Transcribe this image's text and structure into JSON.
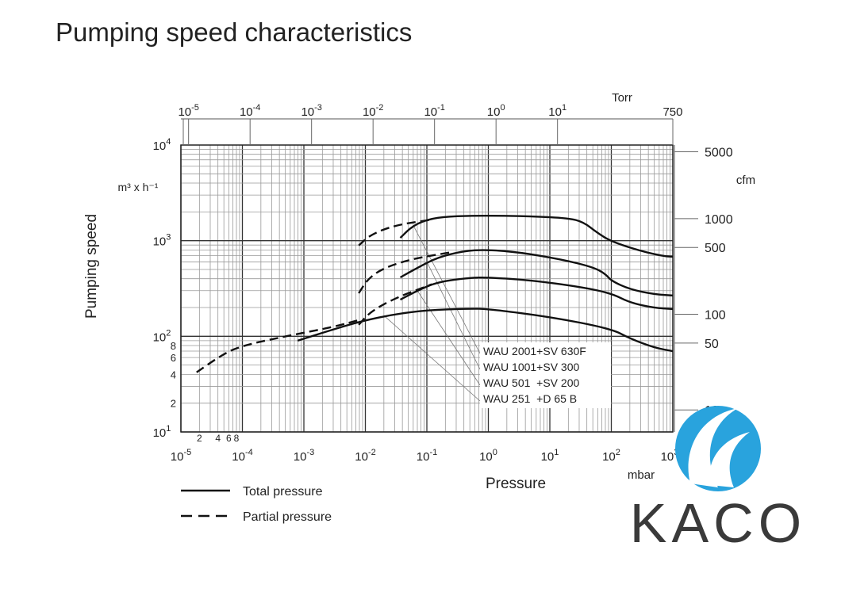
{
  "chart_data": {
    "type": "line",
    "title": "Pumping speed characteristics",
    "xlabel": "Pressure",
    "xunit": "mbar",
    "ylabel": "Pumping speed",
    "yunit": "m³ x h⁻¹",
    "xscale": "log",
    "yscale": "log",
    "xlim": [
      1e-05,
      1000
    ],
    "ylim": [
      10,
      10000
    ],
    "grid": true,
    "x_ticks": [
      {
        "exp": "-5",
        "value": 1e-05
      },
      {
        "exp": "-4",
        "value": 0.0001
      },
      {
        "exp": "-3",
        "value": 0.001
      },
      {
        "exp": "-2",
        "value": 0.01
      },
      {
        "exp": "-1",
        "value": 0.1
      },
      {
        "exp": "0",
        "value": 1
      },
      {
        "exp": "1",
        "value": 10
      },
      {
        "exp": "2",
        "value": 100
      },
      {
        "exp": "3",
        "value": 1000
      }
    ],
    "x_minor_labels": [
      {
        "label": "2",
        "value": 2e-05
      },
      {
        "label": "4",
        "value": 4e-05
      },
      {
        "label": "6",
        "value": 6e-05
      },
      {
        "label": "8",
        "value": 8e-05
      }
    ],
    "y_ticks": [
      {
        "exp": "1",
        "value": 10
      },
      {
        "exp": "2",
        "value": 100
      },
      {
        "exp": "3",
        "value": 1000
      },
      {
        "exp": "4",
        "value": 10000
      }
    ],
    "y_minor_labels": [
      {
        "label": "2",
        "value": 20
      },
      {
        "label": "4",
        "value": 40
      },
      {
        "label": "6",
        "value": 60
      },
      {
        "label": "8",
        "value": 80
      }
    ],
    "top_axis": {
      "unit": "Torr",
      "ticks": [
        {
          "base": "10",
          "exp": "-5",
          "value": 1e-05
        },
        {
          "base": "10",
          "exp": "-4",
          "value": 0.0001
        },
        {
          "base": "10",
          "exp": "-3",
          "value": 0.001
        },
        {
          "base": "10",
          "exp": "-2",
          "value": 0.01
        },
        {
          "base": "10",
          "exp": "-1",
          "value": 0.1
        },
        {
          "base": "10",
          "exp": "0",
          "value": 1
        },
        {
          "base": "10",
          "exp": "1",
          "value": 10
        },
        {
          "base": "750",
          "exp": "",
          "value": 750
        }
      ]
    },
    "right_axis": {
      "unit": "cfm",
      "ticks": [
        {
          "label": "5000",
          "value": 5000
        },
        {
          "label": "1000",
          "value": 1000
        },
        {
          "label": "500",
          "value": 500
        },
        {
          "label": "100",
          "value": 100
        },
        {
          "label": "50",
          "value": 50
        },
        {
          "label": "10",
          "value": 10
        }
      ]
    },
    "series": [
      {
        "name": "WAU 2001+SV 630F",
        "style": "solid",
        "points": [
          [
            0.037,
            1070
          ],
          [
            0.06,
            1450
          ],
          [
            0.12,
            1720
          ],
          [
            0.3,
            1810
          ],
          [
            1,
            1830
          ],
          [
            5,
            1800
          ],
          [
            20,
            1720
          ],
          [
            35,
            1570
          ],
          [
            60,
            1200
          ],
          [
            100,
            980
          ],
          [
            300,
            780
          ],
          [
            700,
            690
          ],
          [
            1000,
            680
          ]
        ],
        "label_anchor": [
          0.06,
          1450
        ]
      },
      {
        "name": "WAU 2001+SV 630F",
        "style": "dashed",
        "points": [
          [
            0.0078,
            890
          ],
          [
            0.012,
            1150
          ],
          [
            0.03,
            1450
          ],
          [
            0.12,
            1660
          ]
        ]
      },
      {
        "name": "WAU 1001+SV 300",
        "style": "solid",
        "points": [
          [
            0.037,
            413
          ],
          [
            0.07,
            520
          ],
          [
            0.15,
            670
          ],
          [
            0.4,
            780
          ],
          [
            0.9,
            805
          ],
          [
            3,
            760
          ],
          [
            15,
            640
          ],
          [
            50,
            530
          ],
          [
            80,
            450
          ],
          [
            100,
            380
          ],
          [
            200,
            310
          ],
          [
            500,
            275
          ],
          [
            1000,
            267
          ]
        ],
        "label_anchor": [
          0.1,
          600
        ]
      },
      {
        "name": "WAU 1001+SV 300",
        "style": "dashed",
        "points": [
          [
            0.0078,
            282
          ],
          [
            0.011,
            400
          ],
          [
            0.02,
            520
          ],
          [
            0.06,
            650
          ],
          [
            0.26,
            760
          ]
        ]
      },
      {
        "name": "WAU 501 +SV 200",
        "style": "solid",
        "points": [
          [
            0.037,
            242
          ],
          [
            0.07,
            300
          ],
          [
            0.15,
            370
          ],
          [
            0.5,
            410
          ],
          [
            1,
            413
          ],
          [
            5,
            385
          ],
          [
            30,
            330
          ],
          [
            100,
            282
          ],
          [
            200,
            225
          ],
          [
            500,
            198
          ],
          [
            1000,
            193
          ]
        ],
        "label_anchor": [
          0.07,
          300
        ]
      },
      {
        "name": "WAU 501 +SV 200",
        "style": "dashed",
        "points": [
          [
            0.0078,
            132
          ],
          [
            0.012,
            180
          ],
          [
            0.03,
            250
          ],
          [
            0.12,
            350
          ]
        ]
      },
      {
        "name": "WAU 251 +D 65 B",
        "style": "solid",
        "points": [
          [
            0.00079,
            90
          ],
          [
            0.003,
            118
          ],
          [
            0.009,
            145
          ],
          [
            0.03,
            170
          ],
          [
            0.1,
            188
          ],
          [
            0.5,
            195
          ],
          [
            1,
            193
          ],
          [
            10,
            160
          ],
          [
            100,
            120
          ],
          [
            200,
            95
          ],
          [
            500,
            76
          ],
          [
            1000,
            70
          ]
        ],
        "label_anchor": [
          0.02,
          165
        ]
      },
      {
        "name": "WAU 251 +D 65 B",
        "style": "dashed",
        "points": [
          [
            1.8e-05,
            42
          ],
          [
            4e-05,
            60
          ],
          [
            8.5e-05,
            78
          ],
          [
            0.0005,
            100
          ],
          [
            0.003,
            125
          ],
          [
            0.0085,
            150
          ]
        ]
      }
    ],
    "label_box": [
      "WAU 2001+SV 630F",
      "WAU 1001+SV 300",
      "WAU 501  +SV 200",
      "WAU 251  +D 65 B"
    ],
    "legend": [
      {
        "label": "Total pressure",
        "style": "solid"
      },
      {
        "label": "Partial pressure",
        "style": "dashed"
      }
    ],
    "legend_placement": "bottom-left"
  },
  "logo": {
    "text": "KACO",
    "color_circle": "#29a3dd",
    "color_text": "#3a3a3a"
  }
}
